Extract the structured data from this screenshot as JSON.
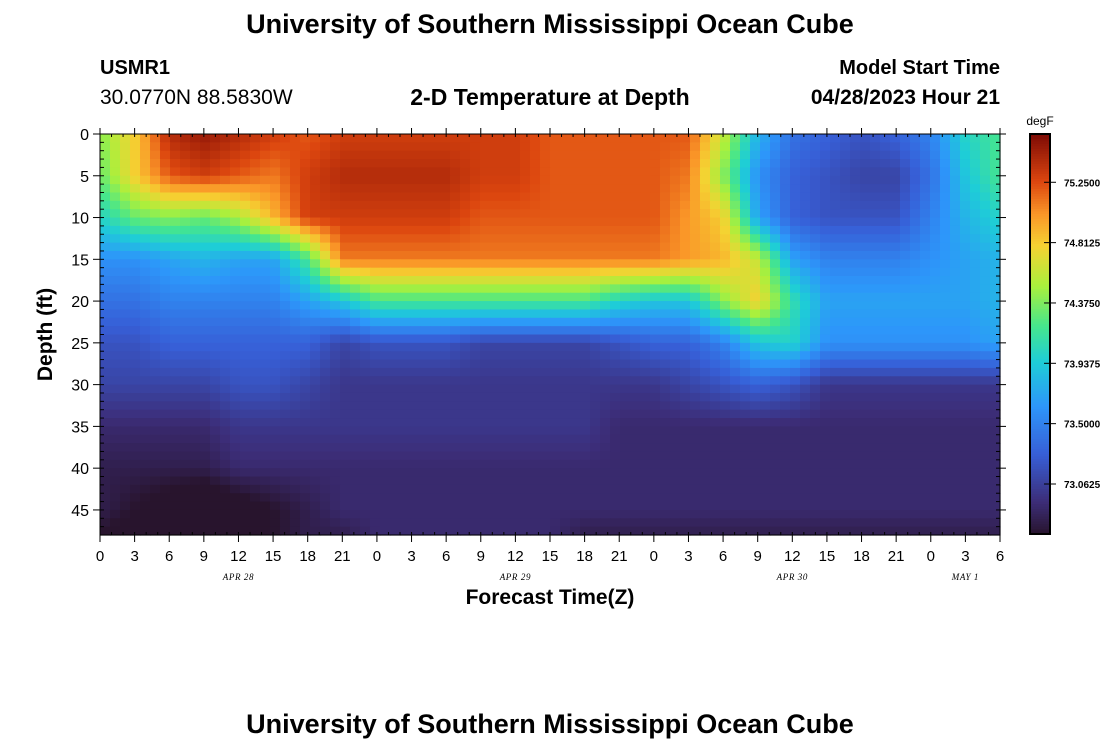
{
  "header": {
    "title": "University of Southern Mississippi Ocean Cube",
    "station_id": "USMR1",
    "coordinates": "30.0770N  88.5830W",
    "subtitle": "2-D Temperature at Depth",
    "model_start_label": "Model Start Time",
    "model_start_value": "04/28/2023 Hour 21"
  },
  "footer": {
    "title": "University of Southern Mississippi Ocean Cube"
  },
  "chart_data": {
    "type": "heatmap",
    "title": "2-D Temperature at Depth",
    "xlabel": "Forecast Time(Z)",
    "ylabel": "Depth (ft)",
    "x_ticks": [
      "0",
      "3",
      "6",
      "9",
      "12",
      "15",
      "18",
      "21",
      "0",
      "3",
      "6",
      "9",
      "12",
      "15",
      "18",
      "21",
      "0",
      "3",
      "6",
      "9",
      "12",
      "15",
      "18",
      "21",
      "0",
      "3",
      "6"
    ],
    "x_tick_hours": [
      0,
      3,
      6,
      9,
      12,
      15,
      18,
      21,
      24,
      27,
      30,
      33,
      36,
      39,
      42,
      45,
      48,
      51,
      54,
      57,
      60,
      63,
      66,
      69,
      72,
      75,
      78
    ],
    "x_range_hours": [
      0,
      78
    ],
    "date_labels": [
      {
        "text": "APR 28",
        "hour": 12
      },
      {
        "text": "APR 29",
        "hour": 36
      },
      {
        "text": "APR 30",
        "hour": 60
      },
      {
        "text": "MAY 1",
        "hour": 75
      }
    ],
    "y_ticks": [
      0,
      5,
      10,
      15,
      20,
      25,
      30,
      35,
      40,
      45
    ],
    "y_range": [
      0,
      48
    ],
    "y_inverted": true,
    "colorbar": {
      "unit": "degF",
      "range": [
        72.7,
        75.6
      ],
      "ticks": [
        "75.2500",
        "74.8125",
        "74.3750",
        "73.9375",
        "73.5000",
        "73.0625"
      ]
    },
    "grid_hours": [
      0,
      3,
      6,
      9,
      12,
      15,
      18,
      21,
      24,
      27,
      30,
      33,
      36,
      39,
      42,
      45,
      48,
      51,
      54,
      57,
      60,
      63,
      66,
      69,
      72,
      75,
      78
    ],
    "grid_depths": [
      0,
      5,
      10,
      15,
      20,
      25,
      30,
      35,
      40,
      45,
      48
    ],
    "temperature_degF": [
      [
        74.4,
        74.8,
        75.4,
        75.5,
        75.4,
        75.3,
        75.2,
        75.3,
        75.3,
        75.3,
        75.3,
        75.3,
        75.3,
        75.2,
        75.2,
        75.2,
        75.2,
        75.2,
        74.6,
        73.8,
        73.4,
        73.3,
        73.2,
        73.3,
        73.5,
        74.0,
        74.2
      ],
      [
        74.3,
        74.8,
        75.2,
        75.3,
        75.2,
        75.1,
        75.3,
        75.4,
        75.4,
        75.4,
        75.4,
        75.3,
        75.3,
        75.2,
        75.2,
        75.2,
        75.2,
        75.1,
        74.4,
        73.6,
        73.3,
        73.2,
        73.1,
        73.1,
        73.4,
        73.9,
        74.2
      ],
      [
        74.0,
        74.3,
        74.4,
        74.3,
        74.5,
        74.9,
        75.3,
        75.3,
        75.3,
        75.3,
        75.3,
        75.2,
        75.2,
        75.2,
        75.2,
        75.2,
        75.2,
        75.0,
        74.8,
        73.7,
        73.3,
        73.2,
        73.2,
        73.2,
        73.5,
        73.8,
        74.0
      ],
      [
        73.6,
        73.6,
        73.7,
        73.8,
        73.7,
        73.7,
        74.2,
        75.1,
        75.1,
        75.1,
        75.1,
        75.1,
        75.1,
        75.1,
        75.1,
        75.1,
        75.1,
        75.0,
        74.9,
        74.6,
        73.7,
        73.5,
        73.5,
        73.5,
        73.6,
        73.7,
        73.8
      ],
      [
        73.4,
        73.4,
        73.5,
        73.5,
        73.5,
        73.5,
        73.7,
        73.9,
        74.2,
        74.2,
        74.2,
        74.2,
        74.2,
        74.2,
        74.2,
        74.0,
        73.9,
        73.9,
        74.4,
        74.8,
        74.1,
        73.7,
        73.7,
        73.7,
        73.7,
        73.7,
        73.8
      ],
      [
        73.2,
        73.2,
        73.3,
        73.3,
        73.3,
        73.3,
        73.3,
        73.1,
        73.2,
        73.2,
        73.2,
        73.1,
        73.1,
        73.1,
        73.1,
        73.2,
        73.3,
        73.3,
        73.5,
        73.9,
        74.0,
        73.6,
        73.6,
        73.6,
        73.6,
        73.6,
        73.7
      ],
      [
        73.1,
        73.1,
        73.1,
        73.1,
        73.2,
        73.2,
        73.1,
        73.0,
        73.0,
        73.0,
        73.0,
        73.0,
        73.0,
        73.0,
        73.0,
        73.0,
        73.0,
        73.1,
        73.2,
        73.3,
        73.2,
        73.0,
        73.0,
        73.0,
        73.0,
        73.0,
        73.0
      ],
      [
        72.9,
        72.9,
        72.9,
        72.9,
        73.0,
        73.0,
        73.0,
        73.0,
        73.0,
        73.0,
        73.0,
        73.0,
        73.0,
        73.0,
        73.0,
        72.9,
        72.9,
        72.9,
        72.9,
        72.9,
        72.9,
        72.9,
        72.9,
        72.9,
        72.9,
        72.9,
        72.9
      ],
      [
        72.8,
        72.8,
        72.8,
        72.8,
        72.9,
        72.9,
        72.9,
        72.9,
        72.9,
        72.9,
        72.9,
        72.9,
        72.9,
        72.9,
        72.9,
        72.9,
        72.9,
        72.9,
        72.9,
        72.9,
        72.9,
        72.9,
        72.9,
        72.9,
        72.9,
        72.9,
        72.9
      ],
      [
        72.8,
        72.7,
        72.6,
        72.5,
        72.6,
        72.7,
        72.8,
        72.9,
        72.9,
        72.9,
        72.9,
        72.9,
        72.9,
        72.9,
        72.9,
        72.9,
        72.9,
        72.9,
        72.9,
        72.9,
        72.9,
        72.9,
        72.9,
        72.9,
        72.9,
        72.9,
        72.9
      ],
      [
        72.7,
        72.6,
        72.5,
        72.5,
        72.6,
        72.7,
        72.8,
        72.8,
        72.9,
        72.9,
        72.9,
        72.9,
        72.9,
        72.9,
        72.8,
        72.8,
        72.8,
        72.8,
        72.8,
        72.8,
        72.8,
        72.8,
        72.8,
        72.8,
        72.8,
        72.8,
        72.8
      ]
    ]
  }
}
